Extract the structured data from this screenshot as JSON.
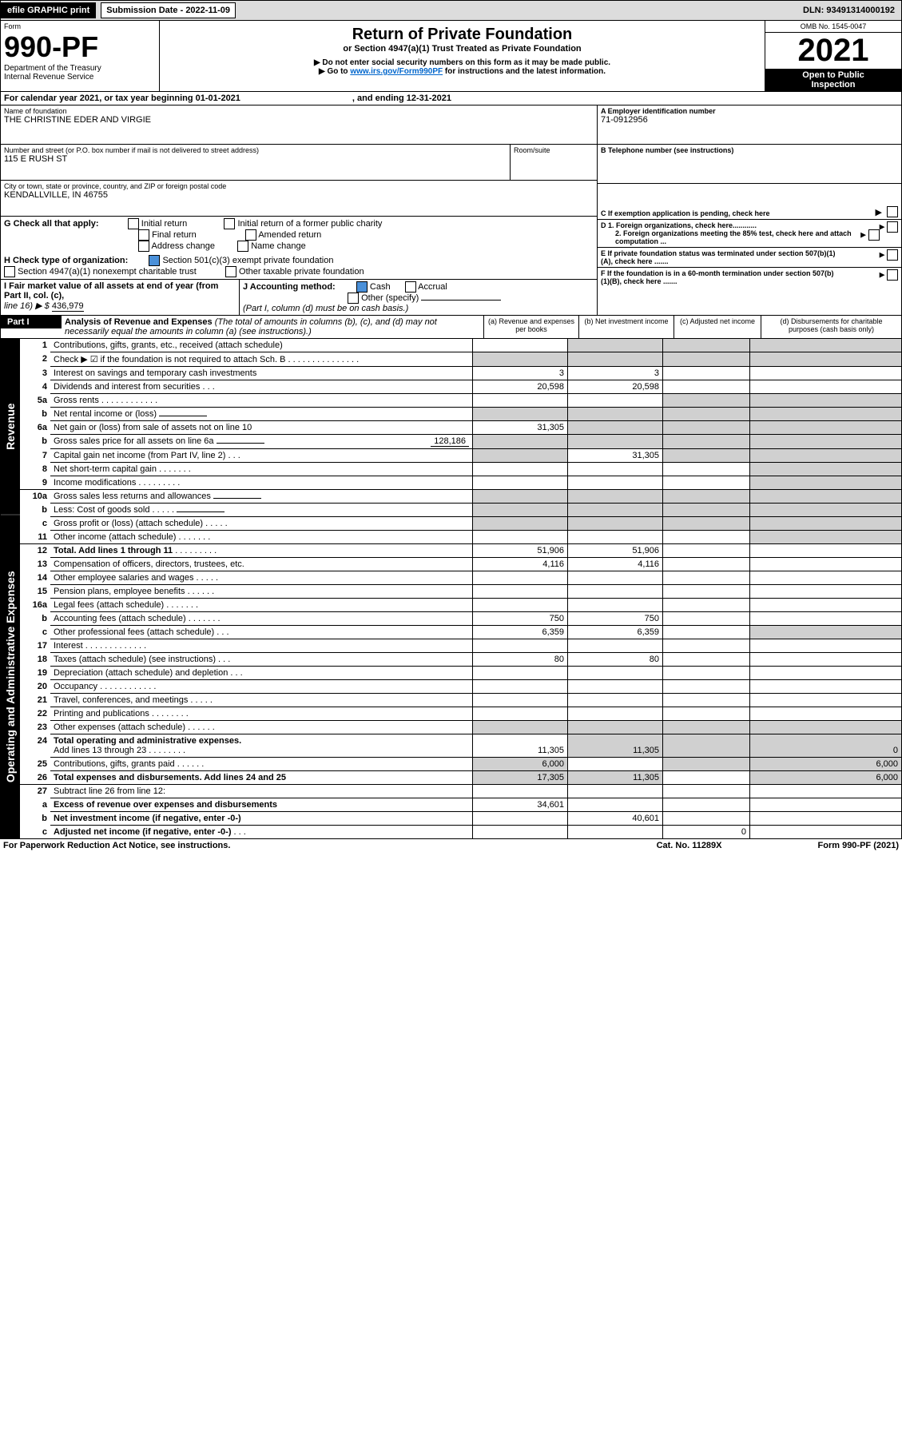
{
  "bar": {
    "efile": "efile GRAPHIC print",
    "sub_label": "Submission Date - 2022-11-09",
    "dln": "DLN: 93491314000192"
  },
  "hdr": {
    "form": "Form",
    "num": "990-PF",
    "dept": "Department of the Treasury",
    "irs": "Internal Revenue Service",
    "title": "Return of Private Foundation",
    "sub": "or Section 4947(a)(1) Trust Treated as Private Foundation",
    "l1": "▶ Do not enter social security numbers on this form as it may be made public.",
    "l2": "▶ Go to ",
    "link": "www.irs.gov/Form990PF",
    "l3": " for instructions and the latest information.",
    "omb": "OMB No. 1545-0047",
    "year": "2021",
    "open": "Open to Public",
    "insp": "Inspection"
  },
  "cal": {
    "a": "For calendar year 2021, or tax year beginning 01-01-2021",
    "b": ", and ending 12-31-2021"
  },
  "id": {
    "name_l": "Name of foundation",
    "name": "THE CHRISTINE EDER AND VIRGIE",
    "addr_l": "Number and street (or P.O. box number if mail is not delivered to street address)",
    "addr": "115 E RUSH ST",
    "room": "Room/suite",
    "city_l": "City or town, state or province, country, and ZIP or foreign postal code",
    "city": "KENDALLVILLE, IN  46755",
    "ein_l": "A Employer identification number",
    "ein": "71-0912956",
    "tel_l": "B Telephone number (see instructions)",
    "c": "C If exemption application is pending, check here",
    "d1": "D 1. Foreign organizations, check here............",
    "d2": "2. Foreign organizations meeting the 85% test, check here and attach computation ...",
    "e": "E  If private foundation status was terminated under section 507(b)(1)(A), check here .......",
    "f": "F  If the foundation is in a 60-month termination under section 507(b)(1)(B), check here ......."
  },
  "g": {
    "t": "G Check all that apply:",
    "o1": "Initial return",
    "o2": "Final return",
    "o3": "Address change",
    "o4": "Initial return of a former public charity",
    "o5": "Amended return",
    "o6": "Name change"
  },
  "h": {
    "t": "H Check type of organization:",
    "o1": "Section 501(c)(3) exempt private foundation",
    "o2": "Section 4947(a)(1) nonexempt charitable trust",
    "o3": "Other taxable private foundation"
  },
  "i": {
    "t": "I Fair market value of all assets at end of year (from Part II, col. (c),",
    "l": "line 16) ▶ $",
    "v": "436,979"
  },
  "j": {
    "t": "J Accounting method:",
    "c": "Cash",
    "a": "Accrual",
    "o": "Other (specify)",
    "n": "(Part I, column (d) must be on cash basis.)"
  },
  "p1": {
    "t": "Part I",
    "title": "Analysis of Revenue and Expenses",
    "sub": " (The total of amounts in columns (b), (c), and (d) may not necessarily equal the amounts in column (a) (see instructions).)",
    "ca": "(a)   Revenue and expenses per books",
    "cb": "(b)   Net investment income",
    "cc": "(c)  Adjusted net income",
    "cd": "(d)  Disbursements for charitable purposes (cash basis only)"
  },
  "rows": [
    {
      "n": "1",
      "t": "Contributions, gifts, grants, etc., received (attach schedule)",
      "a": "",
      "b": "",
      "c": "",
      "d": ""
    },
    {
      "n": "2",
      "t": "Check ▶ ☑ if the foundation is not required to attach Sch. B",
      "dots": ". . . . . . . . . . . . . . .",
      "a": "",
      "b": "",
      "c": "",
      "d": ""
    },
    {
      "n": "3",
      "t": "Interest on savings and temporary cash investments",
      "a": "3",
      "b": "3",
      "c": "",
      "d": ""
    },
    {
      "n": "4",
      "t": "Dividends and interest from securities",
      "dots": ". . .",
      "a": "20,598",
      "b": "20,598",
      "c": "",
      "d": ""
    },
    {
      "n": "5a",
      "t": "Gross rents",
      "dots": ". . . . . . . . . . . .",
      "a": "",
      "b": "",
      "c": "",
      "d": ""
    },
    {
      "n": "b",
      "t": "Net rental income or (loss)",
      "sub": true,
      "a": "",
      "b": "",
      "c": "",
      "d": ""
    },
    {
      "n": "6a",
      "t": "Net gain or (loss) from sale of assets not on line 10",
      "a": "31,305",
      "b": "",
      "c": "",
      "d": ""
    },
    {
      "n": "b",
      "t": "Gross sales price for all assets on line 6a",
      "sub": true,
      "v": "128,186",
      "a": "",
      "b": "",
      "c": "",
      "d": ""
    },
    {
      "n": "7",
      "t": "Capital gain net income (from Part IV, line 2)",
      "dots": ". . .",
      "a": "",
      "b": "31,305",
      "c": "",
      "d": ""
    },
    {
      "n": "8",
      "t": "Net short-term capital gain",
      "dots": ". . . . . . .",
      "a": "",
      "b": "",
      "c": "",
      "d": ""
    },
    {
      "n": "9",
      "t": "Income modifications",
      "dots": ". . . . . . . . .",
      "a": "",
      "b": "",
      "c": "",
      "d": ""
    },
    {
      "n": "10a",
      "t": "Gross sales less returns and allowances",
      "sub": true,
      "a": "",
      "b": "",
      "c": "",
      "d": ""
    },
    {
      "n": "b",
      "t": "Less: Cost of goods sold",
      "dots": ". . . . .",
      "sub": true,
      "a": "",
      "b": "",
      "c": "",
      "d": ""
    },
    {
      "n": "c",
      "t": "Gross profit or (loss) (attach schedule)",
      "dots": ". . . . .",
      "a": "",
      "b": "",
      "c": "",
      "d": ""
    },
    {
      "n": "11",
      "t": "Other income (attach schedule)",
      "dots": ". . . . . . .",
      "a": "",
      "b": "",
      "c": "",
      "d": ""
    },
    {
      "n": "12",
      "t": "Total. Add lines 1 through 11",
      "bw": true,
      "dots": ". . . . . . . . .",
      "a": "51,906",
      "b": "51,906",
      "c": "",
      "d": ""
    },
    {
      "n": "13",
      "t": "Compensation of officers, directors, trustees, etc.",
      "a": "4,116",
      "b": "4,116",
      "c": "",
      "d": ""
    },
    {
      "n": "14",
      "t": "Other employee salaries and wages",
      "dots": ". . . . .",
      "a": "",
      "b": "",
      "c": "",
      "d": ""
    },
    {
      "n": "15",
      "t": "Pension plans, employee benefits",
      "dots": ". . . . . .",
      "a": "",
      "b": "",
      "c": "",
      "d": ""
    },
    {
      "n": "16a",
      "t": "Legal fees (attach schedule)",
      "dots": ". . . . . . .",
      "a": "",
      "b": "",
      "c": "",
      "d": ""
    },
    {
      "n": "b",
      "t": "Accounting fees (attach schedule)",
      "dots": ". . . . . . .",
      "a": "750",
      "b": "750",
      "c": "",
      "d": ""
    },
    {
      "n": "c",
      "t": "Other professional fees (attach schedule)",
      "dots": ". . .",
      "a": "6,359",
      "b": "6,359",
      "c": "",
      "d": ""
    },
    {
      "n": "17",
      "t": "Interest",
      "dots": ". . . . . . . . . . . . .",
      "a": "",
      "b": "",
      "c": "",
      "d": ""
    },
    {
      "n": "18",
      "t": "Taxes (attach schedule) (see instructions)",
      "dots": ". . .",
      "a": "80",
      "b": "80",
      "c": "",
      "d": ""
    },
    {
      "n": "19",
      "t": "Depreciation (attach schedule) and depletion",
      "dots": ". . .",
      "a": "",
      "b": "",
      "c": "",
      "d": ""
    },
    {
      "n": "20",
      "t": "Occupancy",
      "dots": ". . . . . . . . . . . .",
      "a": "",
      "b": "",
      "c": "",
      "d": ""
    },
    {
      "n": "21",
      "t": "Travel, conferences, and meetings",
      "dots": ". . . . .",
      "a": "",
      "b": "",
      "c": "",
      "d": ""
    },
    {
      "n": "22",
      "t": "Printing and publications",
      "dots": ". . . . . . . .",
      "a": "",
      "b": "",
      "c": "",
      "d": ""
    },
    {
      "n": "23",
      "t": "Other expenses (attach schedule)",
      "dots": ". . . . . .",
      "a": "",
      "b": "",
      "c": "",
      "d": ""
    },
    {
      "n": "24",
      "t": "Total operating and administrative expenses.",
      "bw": true,
      "t2": "Add lines 13 through 23",
      "dots": ". . . . . . . .",
      "a": "11,305",
      "b": "11,305",
      "c": "",
      "d": "0"
    },
    {
      "n": "25",
      "t": "Contributions, gifts, grants paid",
      "dots": ". . . . . .",
      "a": "6,000",
      "b": "",
      "c": "",
      "d": "6,000"
    },
    {
      "n": "26",
      "t": "Total expenses and disbursements. Add lines 24 and 25",
      "bw": true,
      "a": "17,305",
      "b": "11,305",
      "c": "",
      "d": "6,000"
    },
    {
      "n": "27",
      "t": "Subtract line 26 from line 12:",
      "a": "",
      "b": "",
      "c": "",
      "d": ""
    },
    {
      "n": "a",
      "t": "Excess of revenue over expenses and disbursements",
      "bw": true,
      "a": "34,601",
      "b": "",
      "c": "",
      "d": ""
    },
    {
      "n": "b",
      "t": "Net investment income (if negative, enter -0-)",
      "bw": true,
      "a": "",
      "b": "40,601",
      "c": "",
      "d": ""
    },
    {
      "n": "c",
      "t": "Adjusted net income (if negative, enter -0-)",
      "bw": true,
      "dots": ". . .",
      "a": "",
      "b": "",
      "c": "0",
      "d": ""
    }
  ],
  "sec": {
    "rev": "Revenue",
    "exp": "Operating and Administrative Expenses"
  },
  "ft": {
    "l": "For Paperwork Reduction Act Notice, see instructions.",
    "c": "Cat. No. 11289X",
    "r": "Form 990-PF (2021)"
  },
  "gray12": [
    1,
    5,
    6,
    7,
    9,
    10,
    11,
    12,
    22,
    23,
    24,
    25,
    26,
    27,
    28,
    29
  ],
  "grayC": {
    "1": "bcd",
    "2": "abcd",
    "5": "cd",
    "6": "abcd",
    "7": "bcd",
    "8": "abcd",
    "9": "acd",
    "10": "d",
    "11": "d",
    "12": "abcd",
    "13": "abcd",
    "14": "abcd",
    "15": "d",
    "22": "d",
    "29": "abcd",
    "30": "bcd",
    "31": "acd",
    "32": "abd"
  }
}
